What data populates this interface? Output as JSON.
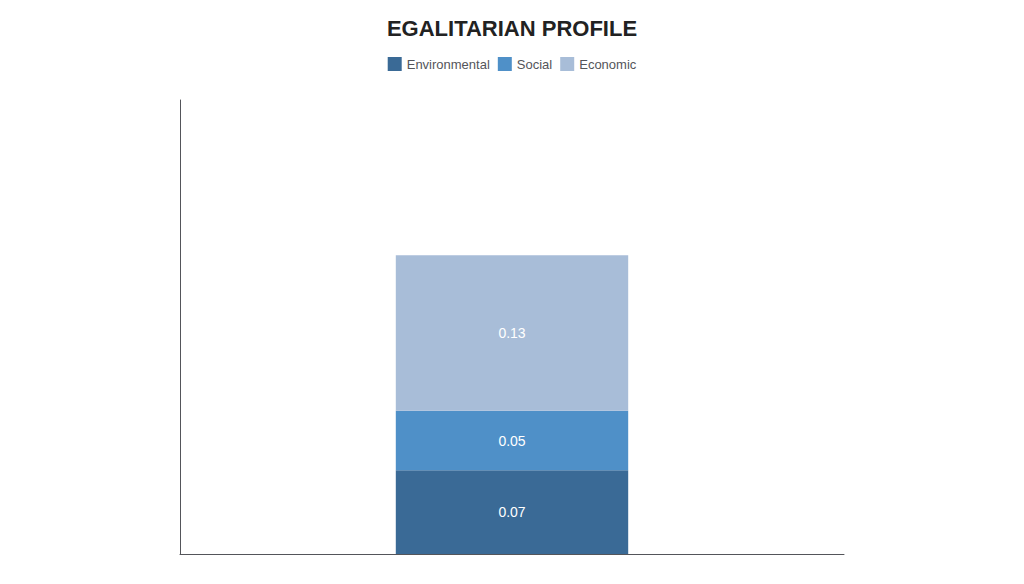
{
  "chart_data": {
    "type": "bar",
    "title": "EGALITARIAN PROFILE",
    "categories": [
      null
    ],
    "series": [
      {
        "name": "Environmental",
        "color": "#3A6A96",
        "values": [
          0.07
        ]
      },
      {
        "name": "Social",
        "color": "#4F90C8",
        "values": [
          0.05
        ]
      },
      {
        "name": "Economic",
        "color": "#A8BDD8",
        "values": [
          0.13
        ]
      }
    ],
    "stacked": true,
    "data_labels": true,
    "ylim": [
      0.0,
      0.38
    ],
    "yticks": [],
    "tick_labels": false,
    "grid": false,
    "legend": "top"
  }
}
